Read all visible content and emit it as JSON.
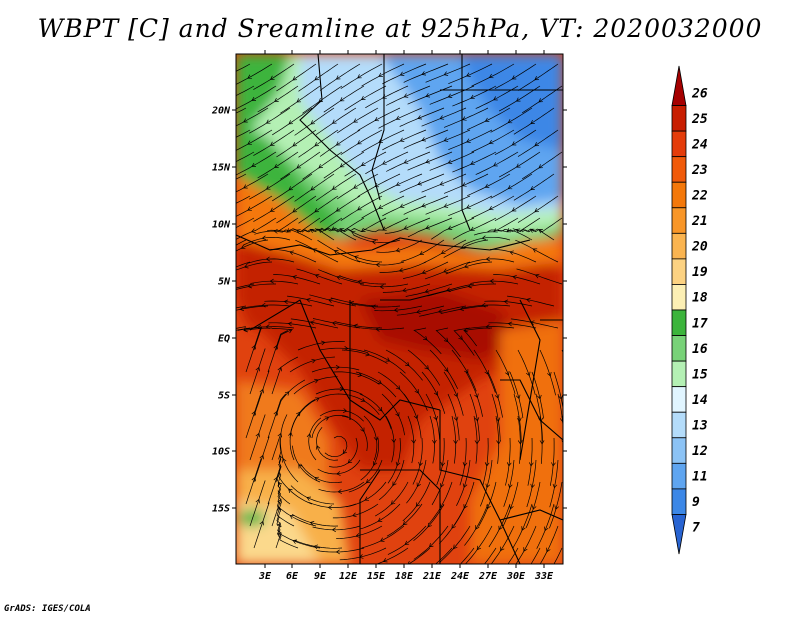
{
  "title": "WBPT [C] and Sreamline at 925hPa, VT: 2020032000",
  "credit": "GrADS: IGES/COLA",
  "map": {
    "lat_ticks": [
      "20N",
      "15N",
      "10N",
      "5N",
      "EQ",
      "5S",
      "10S",
      "15S"
    ],
    "lon_ticks": [
      "3E",
      "6E",
      "9E",
      "12E",
      "15E",
      "18E",
      "21E",
      "24E",
      "27E",
      "30E",
      "33E"
    ]
  },
  "colorbar": {
    "labels": [
      "26",
      "25",
      "24",
      "23",
      "22",
      "21",
      "20",
      "19",
      "18",
      "17",
      "16",
      "15",
      "14",
      "13",
      "12",
      "11",
      "9",
      "7"
    ],
    "colors": [
      "#a50000",
      "#c81e00",
      "#e43c0a",
      "#f05a0a",
      "#f4780a",
      "#f89628",
      "#fab450",
      "#fcd282",
      "#fcefb4",
      "#3cb43c",
      "#78d278",
      "#b4f0b4",
      "#e1f5ff",
      "#b4dcfa",
      "#8cc3f5",
      "#5fa5f0",
      "#3c87e6",
      "#2864d2"
    ]
  }
}
